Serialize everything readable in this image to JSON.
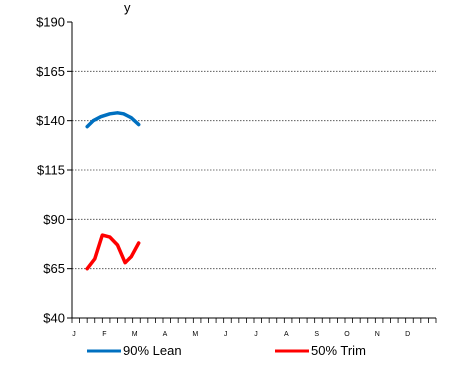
{
  "chart_data": {
    "type": "line",
    "title_fragment": "y",
    "categories": [
      "J",
      "F",
      "M",
      "A",
      "M",
      "J",
      "J",
      "A",
      "S",
      "O",
      "N",
      "D"
    ],
    "y_ticks": [
      "$190",
      "$165",
      "$140",
      "$115",
      "$90",
      "$65",
      "$40"
    ],
    "ylim": [
      40,
      190
    ],
    "grid": "horizontal-dashed",
    "legend_position": "bottom",
    "series": [
      {
        "name": "90% Lean",
        "color": "#0070c0",
        "points": [
          [
            1.0,
            137
          ],
          [
            1.2,
            140
          ],
          [
            1.45,
            142
          ],
          [
            1.75,
            143.5
          ],
          [
            2.0,
            144
          ],
          [
            2.2,
            143.5
          ],
          [
            2.45,
            141.5
          ],
          [
            2.7,
            138
          ]
        ]
      },
      {
        "name": "50% Trim",
        "color": "#ff0000",
        "points": [
          [
            1.0,
            65
          ],
          [
            1.25,
            70
          ],
          [
            1.5,
            82
          ],
          [
            1.75,
            81
          ],
          [
            2.0,
            77
          ],
          [
            2.25,
            68
          ],
          [
            2.45,
            71
          ],
          [
            2.7,
            78
          ]
        ]
      }
    ]
  }
}
